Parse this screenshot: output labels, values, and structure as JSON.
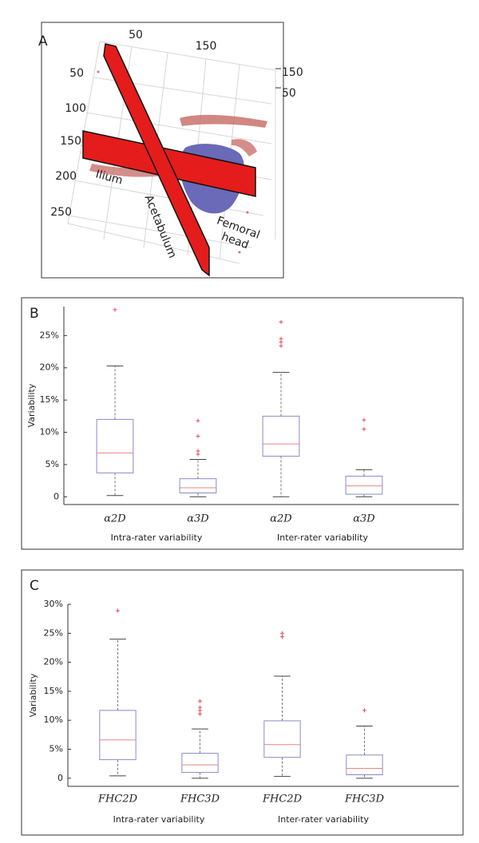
{
  "panel_a": {
    "label": "A",
    "top_ticks": [
      50,
      150
    ],
    "left_ticks": [
      50,
      100,
      150,
      200,
      250
    ],
    "right_ticks": [
      150,
      50
    ],
    "ilium": "Ilium",
    "acetabulum": "Acetabulum",
    "femoral_head": [
      "Femoral",
      "head"
    ]
  },
  "chart_data": [
    {
      "type": "box",
      "panel_label": "B",
      "y_label": "Variability",
      "categories": [
        "α2D",
        "α3D",
        "α2D",
        "α3D"
      ],
      "group_labels": [
        "Intra-rater variability",
        "Inter-rater variability"
      ],
      "boxes": [
        {
          "whislo": 0.2,
          "q1": 3.7,
          "med": 6.8,
          "q3": 12.0,
          "whishi": 20.3,
          "fliers": [
            29.0
          ]
        },
        {
          "whislo": 0,
          "q1": 0.6,
          "med": 1.4,
          "q3": 2.8,
          "whishi": 5.8,
          "fliers": [
            11.8,
            9.4,
            7.1,
            6.6
          ]
        },
        {
          "whislo": 0,
          "q1": 6.3,
          "med": 8.2,
          "q3": 12.5,
          "whishi": 19.3,
          "fliers": [
            27.1,
            24.5,
            24.0,
            23.4
          ]
        },
        {
          "whislo": 0,
          "q1": 0.4,
          "med": 1.7,
          "q3": 3.2,
          "whishi": 4.2,
          "fliers": [
            11.9,
            10.5
          ]
        }
      ],
      "box_color": "#8a8acb",
      "median_color": "#f08080",
      "flier_color": "#e05050",
      "ylim": [
        -1.2,
        29.5
      ],
      "yticks": [
        0,
        {
          "value": 5,
          "label": "5%"
        },
        {
          "value": 10,
          "label": "10%"
        },
        {
          "value": 15,
          "label": "15%"
        },
        {
          "value": 20,
          "label": "20%"
        },
        {
          "value": 25,
          "label": "25%"
        }
      ]
    },
    {
      "type": "box",
      "panel_label": "C",
      "y_label": "Variability",
      "categories": [
        "FHC2D",
        "FHC3D",
        "FHC2D",
        "FHC3D"
      ],
      "group_labels": [
        "Intra-rater variability",
        "Inter-rater variability"
      ],
      "boxes": [
        {
          "whislo": 0.4,
          "q1": 3.2,
          "med": 6.6,
          "q3": 11.7,
          "whishi": 24.0,
          "fliers": [
            28.9
          ]
        },
        {
          "whislo": 0,
          "q1": 1.0,
          "med": 2.3,
          "q3": 4.3,
          "whishi": 8.5,
          "fliers": [
            13.3,
            12.2,
            11.7,
            11.1
          ]
        },
        {
          "whislo": 0.3,
          "q1": 3.6,
          "med": 5.8,
          "q3": 9.9,
          "whishi": 17.6,
          "fliers": [
            25.0,
            24.4
          ]
        },
        {
          "whislo": 0,
          "q1": 0.6,
          "med": 1.7,
          "q3": 4.0,
          "whishi": 9.0,
          "fliers": [
            11.7
          ]
        }
      ],
      "box_color": "#8a8acb",
      "median_color": "#f08080",
      "flier_color": "#e05050",
      "ylim": [
        -1.4,
        30
      ],
      "yticks": [
        0,
        {
          "value": 5,
          "label": "5%"
        },
        {
          "value": 10,
          "label": "10%"
        },
        {
          "value": 15,
          "label": "15%"
        },
        {
          "value": 20,
          "label": "20%"
        },
        {
          "value": 25,
          "label": "25%"
        },
        {
          "value": 30,
          "label": "30%"
        }
      ]
    }
  ]
}
